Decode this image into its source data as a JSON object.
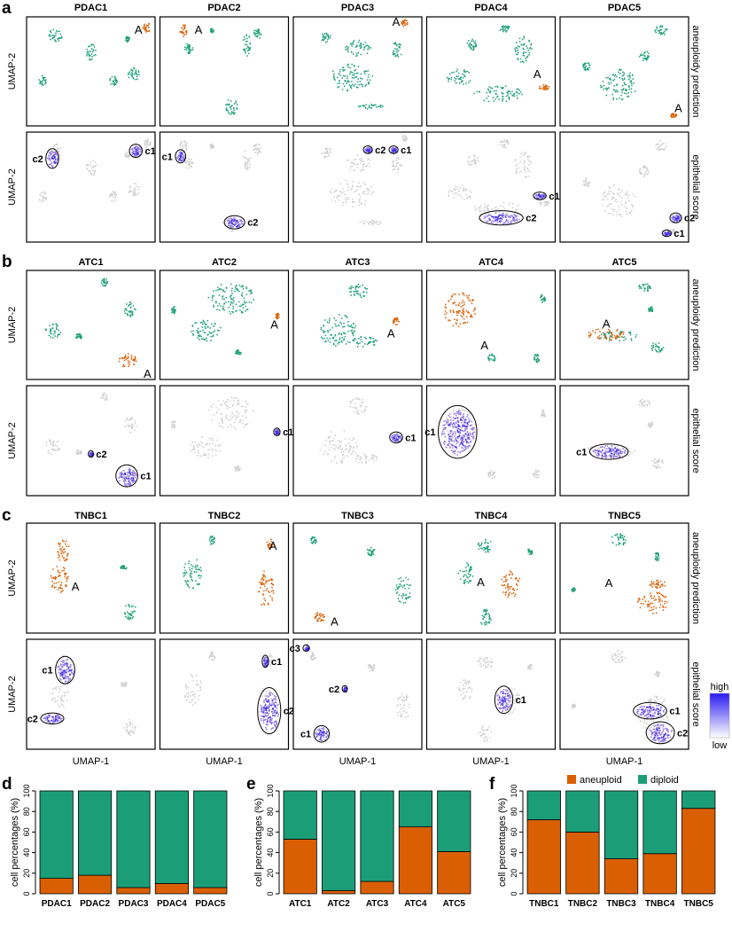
{
  "colors": {
    "aneuploid": "#d95f02",
    "diploid": "#1b9e77",
    "low": "#cfcfcf",
    "epithelial": "#7b55e0",
    "high": "#2a1cf0"
  },
  "umap": {
    "xlabel": "UMAP-1",
    "ylabel": "UMAP-2",
    "row_labels": {
      "aneuploidy": "aneuploidy prediction",
      "epithelial": "epithelial score"
    },
    "aneuploid_marker": "A",
    "colorbar": {
      "high": "high",
      "low": "low"
    },
    "panels": [
      {
        "letter": "a",
        "samples": [
          {
            "name": "PDAC1",
            "A": [
              0.87,
              0.12
            ],
            "diploid": [
              [
                0.22,
                0.16,
                0.11,
                0.12
              ],
              [
                0.5,
                0.32,
                0.08,
                0.15
              ],
              [
                0.83,
                0.52,
                0.09,
                0.14
              ],
              [
                0.67,
                0.58,
                0.06,
                0.09
              ],
              [
                0.12,
                0.58,
                0.06,
                0.1
              ],
              [
                0.78,
                0.2,
                0.04,
                0.05
              ]
            ],
            "aneuploid": [
              [
                0.93,
                0.09,
                0.06,
                0.09
              ]
            ],
            "clusters": [
              [
                0.2,
                0.24,
                0.1,
                0.18,
                "c2"
              ],
              [
                0.85,
                0.17,
                0.1,
                0.12,
                "c1"
              ]
            ]
          },
          {
            "name": "PDAC2",
            "A": [
              0.3,
              0.12
            ],
            "diploid": [
              [
                0.67,
                0.25,
                0.06,
                0.22
              ],
              [
                0.75,
                0.15,
                0.07,
                0.1
              ],
              [
                0.22,
                0.28,
                0.07,
                0.1
              ],
              [
                0.55,
                0.82,
                0.1,
                0.15
              ],
              [
                0.4,
                0.12,
                0.03,
                0.04
              ]
            ],
            "aneuploid": [
              [
                0.18,
                0.12,
                0.06,
                0.11
              ]
            ],
            "clusters": [
              [
                0.16,
                0.22,
                0.08,
                0.12,
                "c1"
              ],
              [
                0.58,
                0.82,
                0.16,
                0.12,
                "c2"
              ]
            ]
          },
          {
            "name": "PDAC3",
            "A": [
              0.8,
              0.05
            ],
            "diploid": [
              [
                0.45,
                0.55,
                0.35,
                0.25
              ],
              [
                0.5,
                0.28,
                0.2,
                0.15
              ],
              [
                0.8,
                0.3,
                0.08,
                0.15
              ],
              [
                0.6,
                0.82,
                0.2,
                0.05
              ],
              [
                0.25,
                0.18,
                0.08,
                0.1
              ]
            ],
            "aneuploid": [
              [
                0.86,
                0.05,
                0.05,
                0.06
              ]
            ],
            "clusters": [
              [
                0.58,
                0.16,
                0.07,
                0.07,
                "c2"
              ],
              [
                0.78,
                0.16,
                0.07,
                0.07,
                "c1"
              ]
            ]
          },
          {
            "name": "PDAC4",
            "A": [
              0.86,
              0.53
            ],
            "diploid": [
              [
                0.55,
                0.7,
                0.4,
                0.15
              ],
              [
                0.25,
                0.55,
                0.2,
                0.15
              ],
              [
                0.75,
                0.3,
                0.15,
                0.25
              ],
              [
                0.6,
                0.1,
                0.08,
                0.08
              ],
              [
                0.35,
                0.25,
                0.1,
                0.1
              ]
            ],
            "aneuploid": [
              [
                0.91,
                0.64,
                0.08,
                0.05
              ]
            ],
            "clusters": [
              [
                0.58,
                0.78,
                0.34,
                0.13,
                "c2"
              ],
              [
                0.88,
                0.58,
                0.1,
                0.07,
                "c1"
              ]
            ]
          },
          {
            "name": "PDAC5",
            "A": [
              0.92,
              0.84
            ],
            "diploid": [
              [
                0.45,
                0.62,
                0.28,
                0.3
              ],
              [
                0.78,
                0.12,
                0.1,
                0.1
              ],
              [
                0.2,
                0.45,
                0.06,
                0.08
              ],
              [
                0.65,
                0.35,
                0.08,
                0.1
              ]
            ],
            "aneuploid": [
              [
                0.88,
                0.9,
                0.05,
                0.04
              ]
            ],
            "clusters": [
              [
                0.9,
                0.78,
                0.09,
                0.09,
                "c2"
              ],
              [
                0.83,
                0.92,
                0.07,
                0.06,
                "c1"
              ]
            ]
          }
        ]
      },
      {
        "letter": "b",
        "samples": [
          {
            "name": "ATC1",
            "A": [
              0.94,
              0.95
            ],
            "diploid": [
              [
                0.8,
                0.35,
                0.1,
                0.15
              ],
              [
                0.2,
                0.55,
                0.12,
                0.15
              ],
              [
                0.6,
                0.1,
                0.05,
                0.08
              ],
              [
                0.4,
                0.6,
                0.05,
                0.05
              ]
            ],
            "aneuploid": [
              [
                0.78,
                0.82,
                0.14,
                0.14
              ]
            ],
            "clusters": [
              [
                0.78,
                0.82,
                0.17,
                0.2,
                "c1"
              ],
              [
                0.5,
                0.62,
                0.04,
                0.06,
                "c2"
              ]
            ]
          },
          {
            "name": "ATC2",
            "A": [
              0.89,
              0.5
            ],
            "diploid": [
              [
                0.55,
                0.25,
                0.36,
                0.3
              ],
              [
                0.35,
                0.55,
                0.25,
                0.2
              ],
              [
                0.6,
                0.75,
                0.05,
                0.06
              ],
              [
                0.1,
                0.35,
                0.04,
                0.08
              ]
            ],
            "aneuploid": [
              [
                0.91,
                0.41,
                0.03,
                0.06
              ]
            ],
            "clusters": [
              [
                0.91,
                0.42,
                0.05,
                0.07,
                "c1"
              ]
            ]
          },
          {
            "name": "ATC3",
            "A": [
              0.76,
              0.58
            ],
            "diploid": [
              [
                0.5,
                0.18,
                0.15,
                0.15
              ],
              [
                0.35,
                0.55,
                0.3,
                0.3
              ],
              [
                0.55,
                0.65,
                0.2,
                0.1
              ]
            ],
            "aneuploid": [
              [
                0.8,
                0.46,
                0.06,
                0.07
              ]
            ],
            "clusters": [
              [
                0.8,
                0.47,
                0.1,
                0.1,
                "c1"
              ]
            ]
          },
          {
            "name": "ATC4",
            "A": [
              0.45,
              0.69
            ],
            "diploid": [
              [
                0.85,
                0.8,
                0.05,
                0.08
              ],
              [
                0.9,
                0.25,
                0.04,
                0.08
              ],
              [
                0.5,
                0.8,
                0.06,
                0.08
              ]
            ],
            "aneuploid": [
              [
                0.25,
                0.35,
                0.25,
                0.33
              ]
            ],
            "clusters": [
              [
                0.24,
                0.42,
                0.3,
                0.48,
                "c1"
              ]
            ]
          },
          {
            "name": "ATC5",
            "A": [
              0.36,
              0.49
            ],
            "diploid": [
              [
                0.65,
                0.15,
                0.1,
                0.08
              ],
              [
                0.45,
                0.6,
                0.3,
                0.1
              ],
              [
                0.75,
                0.7,
                0.1,
                0.1
              ],
              [
                0.7,
                0.35,
                0.04,
                0.05
              ]
            ],
            "aneuploid": [
              [
                0.35,
                0.58,
                0.3,
                0.12
              ]
            ],
            "clusters": [
              [
                0.38,
                0.6,
                0.3,
                0.14,
                "c1"
              ]
            ]
          }
        ]
      },
      {
        "letter": "c",
        "samples": [
          {
            "name": "TNBC1",
            "A": [
              0.38,
              0.58
            ],
            "diploid": [
              [
                0.8,
                0.8,
                0.1,
                0.15
              ],
              [
                0.75,
                0.4,
                0.05,
                0.05
              ]
            ],
            "aneuploid": [
              [
                0.28,
                0.25,
                0.1,
                0.22
              ],
              [
                0.25,
                0.5,
                0.15,
                0.25
              ]
            ],
            "clusters": [
              [
                0.3,
                0.28,
                0.15,
                0.25,
                "c1"
              ],
              [
                0.2,
                0.72,
                0.18,
                0.1,
                "c2"
              ]
            ]
          },
          {
            "name": "TNBC2",
            "A": [
              0.88,
              0.21
            ],
            "diploid": [
              [
                0.25,
                0.45,
                0.15,
                0.28
              ],
              [
                0.4,
                0.15,
                0.05,
                0.08
              ]
            ],
            "aneuploid": [
              [
                0.82,
                0.6,
                0.12,
                0.35
              ],
              [
                0.85,
                0.18,
                0.05,
                0.1
              ]
            ],
            "clusters": [
              [
                0.82,
                0.2,
                0.05,
                0.11,
                "c1"
              ],
              [
                0.85,
                0.65,
                0.18,
                0.42,
                "c2"
              ]
            ]
          },
          {
            "name": "TNBC3",
            "A": [
              0.32,
              0.9
            ],
            "diploid": [
              [
                0.85,
                0.6,
                0.12,
                0.25
              ],
              [
                0.15,
                0.15,
                0.05,
                0.08
              ],
              [
                0.6,
                0.25,
                0.06,
                0.08
              ]
            ],
            "aneuploid": [
              [
                0.2,
                0.85,
                0.08,
                0.1
              ]
            ],
            "clusters": [
              [
                0.1,
                0.08,
                0.05,
                0.06,
                "c3"
              ],
              [
                0.4,
                0.45,
                0.04,
                0.06,
                "c2"
              ],
              [
                0.22,
                0.86,
                0.12,
                0.15,
                "c1"
              ]
            ]
          },
          {
            "name": "TNBC4",
            "A": [
              0.42,
              0.54
            ],
            "diploid": [
              [
                0.45,
                0.2,
                0.12,
                0.12
              ],
              [
                0.3,
                0.45,
                0.12,
                0.2
              ],
              [
                0.45,
                0.85,
                0.1,
                0.15
              ],
              [
                0.8,
                0.25,
                0.04,
                0.06
              ]
            ],
            "aneuploid": [
              [
                0.65,
                0.55,
                0.15,
                0.25
              ]
            ],
            "clusters": [
              [
                0.6,
                0.55,
                0.14,
                0.25,
                "c1"
              ]
            ]
          },
          {
            "name": "TNBC5",
            "A": [
              0.38,
              0.55
            ],
            "diploid": [
              [
                0.45,
                0.15,
                0.12,
                0.12
              ],
              [
                0.75,
                0.3,
                0.04,
                0.08
              ],
              [
                0.1,
                0.6,
                0.03,
                0.04
              ]
            ],
            "aneuploid": [
              [
                0.72,
                0.72,
                0.25,
                0.2
              ],
              [
                0.75,
                0.55,
                0.15,
                0.08
              ]
            ],
            "clusters": [
              [
                0.7,
                0.65,
                0.26,
                0.15,
                "c1"
              ],
              [
                0.78,
                0.85,
                0.22,
                0.2,
                "c2"
              ]
            ]
          }
        ]
      }
    ]
  },
  "chart_data": [
    {
      "type": "bar",
      "panel": "d",
      "stacked": true,
      "categories": [
        "PDAC1",
        "PDAC2",
        "PDAC3",
        "PDAC4",
        "PDAC5"
      ],
      "series": [
        {
          "name": "aneuploid",
          "values": [
            15,
            18,
            6,
            10,
            6
          ]
        },
        {
          "name": "diploid",
          "values": [
            85,
            82,
            94,
            90,
            94
          ]
        }
      ],
      "ylabel": "cell percentages (%)",
      "ylim": [
        0,
        100
      ],
      "yticks": [
        0,
        20,
        40,
        60,
        80,
        100
      ]
    },
    {
      "type": "bar",
      "panel": "e",
      "stacked": true,
      "categories": [
        "ATC1",
        "ATC2",
        "ATC3",
        "ATC4",
        "ATC5"
      ],
      "series": [
        {
          "name": "aneuploid",
          "values": [
            53,
            3,
            12,
            65,
            41
          ]
        },
        {
          "name": "diploid",
          "values": [
            47,
            97,
            88,
            35,
            59
          ]
        }
      ],
      "ylabel": "cell percentages (%)",
      "ylim": [
        0,
        100
      ],
      "yticks": [
        0,
        20,
        40,
        60,
        80,
        100
      ]
    },
    {
      "type": "bar",
      "panel": "f",
      "stacked": true,
      "categories": [
        "TNBC1",
        "TNBC2",
        "TNBC3",
        "TNBC4",
        "TNBC5"
      ],
      "series": [
        {
          "name": "aneuploid",
          "values": [
            72,
            60,
            34,
            39,
            83
          ]
        },
        {
          "name": "diploid",
          "values": [
            28,
            40,
            66,
            61,
            17
          ]
        }
      ],
      "ylabel": "cell percentages (%)",
      "ylim": [
        0,
        100
      ],
      "yticks": [
        0,
        20,
        40,
        60,
        80,
        100
      ],
      "legend": {
        "placement": "top",
        "entries": [
          "aneuploid",
          "diploid"
        ]
      }
    }
  ]
}
